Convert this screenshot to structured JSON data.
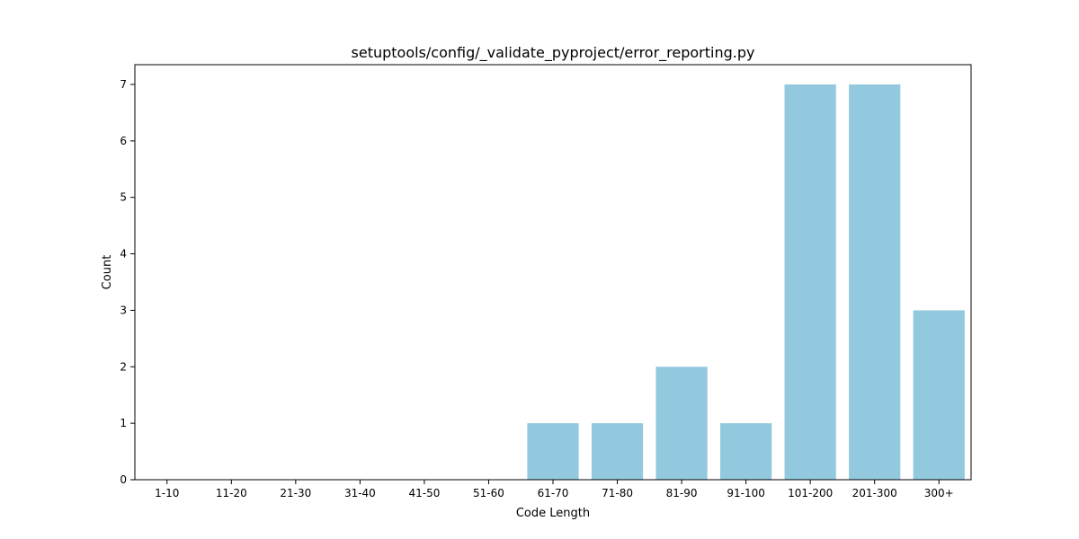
{
  "chart_data": {
    "type": "bar",
    "title": "setuptools/config/_validate_pyproject/error_reporting.py",
    "xlabel": "Code Length",
    "ylabel": "Count",
    "categories": [
      "1-10",
      "11-20",
      "21-30",
      "31-40",
      "41-50",
      "51-60",
      "61-70",
      "71-80",
      "81-90",
      "91-100",
      "101-200",
      "201-300",
      "300+"
    ],
    "values": [
      0,
      0,
      0,
      0,
      0,
      0,
      1,
      1,
      2,
      1,
      7,
      7,
      3
    ],
    "ylim": [
      0,
      7.35
    ],
    "yticks": [
      0,
      1,
      2,
      3,
      4,
      5,
      6,
      7
    ],
    "grid": false,
    "bar_color": "#92c9de"
  }
}
